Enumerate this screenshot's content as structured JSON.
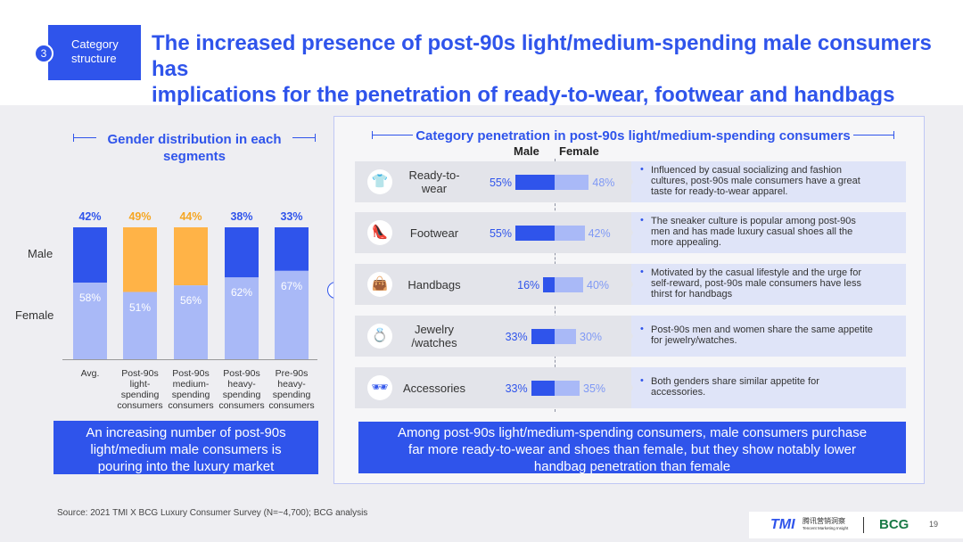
{
  "header": {
    "section_number": "3",
    "section_label_line1": "Category",
    "section_label_line2": "structure",
    "title_line1": "The increased presence of post-90s light/medium-spending male consumers has",
    "title_line2": "implications for the penetration of ready-to-wear, footwear and handbags"
  },
  "left": {
    "title_line1": "Gender distribution in each",
    "title_line2": "segments",
    "legend_male": "Male",
    "legend_female": "Female",
    "conclusion_line1": "An increasing number of post-90s",
    "conclusion_line2": "light/medium male consumers is",
    "conclusion_line3": "pouring into the luxury market"
  },
  "right": {
    "title": "Category penetration in post-90s light/medium-spending consumers",
    "col_male": "Male",
    "col_female": "Female",
    "conclusion_line1": "Among post-90s light/medium-spending consumers, male consumers purchase",
    "conclusion_line2": "far more ready-to-wear and shoes than female, but they show notably lower",
    "conclusion_line3": "handbag penetration than female"
  },
  "chart_data": [
    {
      "type": "bar",
      "stacked": true,
      "title": "Gender distribution in each segments",
      "categories": [
        "Avg.",
        "Post-90s light-spending consumers",
        "Post-90s medium-spending consumers",
        "Post-90s heavy-spending consumers",
        "Pre-90s heavy-spending consumers"
      ],
      "category_labels": [
        [
          "Avg."
        ],
        [
          "Post-90s",
          "light-",
          "spending",
          "consumers"
        ],
        [
          "Post-90s",
          "medium-",
          "spending",
          "consumers"
        ],
        [
          "Post-90s",
          "heavy-",
          "spending",
          "consumers"
        ],
        [
          "Pre-90s",
          "heavy-",
          "spending",
          "consumers"
        ]
      ],
      "series": [
        {
          "name": "Male",
          "values": [
            42,
            49,
            44,
            38,
            33
          ],
          "labels": [
            "42%",
            "49%",
            "44%",
            "38%",
            "33%"
          ]
        },
        {
          "name": "Female",
          "values": [
            58,
            51,
            56,
            62,
            67
          ],
          "labels": [
            "58%",
            "51%",
            "56%",
            "62%",
            "67%"
          ]
        }
      ],
      "highlighted_categories": [
        1,
        2
      ],
      "ylim": [
        0,
        100
      ]
    },
    {
      "type": "bar",
      "orientation": "horizontal-diverging",
      "title": "Category penetration in post-90s light/medium-spending consumers",
      "categories": [
        "Ready-to-wear",
        "Footwear",
        "Handbags",
        "Jewelry/watches",
        "Accessories"
      ],
      "category_labels": [
        [
          "Ready-to-",
          "wear"
        ],
        [
          "Footwear"
        ],
        [
          "Handbags"
        ],
        [
          "Jewelry",
          "/watches"
        ],
        [
          "Accessories"
        ]
      ],
      "series": [
        {
          "name": "Male",
          "values": [
            55,
            55,
            16,
            33,
            33
          ],
          "labels": [
            "55%",
            "55%",
            "16%",
            "33%",
            "33%"
          ]
        },
        {
          "name": "Female",
          "values": [
            48,
            42,
            40,
            30,
            35
          ],
          "labels": [
            "48%",
            "42%",
            "40%",
            "30%",
            "35%"
          ]
        }
      ],
      "icons": [
        "clothing-icon",
        "shoe-icon",
        "handbag-icon",
        "ring-icon",
        "accessories-icon"
      ],
      "descriptions": [
        [
          "Influenced by casual socializing and fashion",
          "cultures, post-90s male consumers have a great",
          "taste for ready-to-wear apparel."
        ],
        [
          "The sneaker culture is popular among post-90s",
          "men and has made luxury casual shoes all the",
          "more appealing."
        ],
        [
          "Motivated by the casual lifestyle and the urge for",
          "self-reward, post-90s male consumers have less",
          "thirst for handbags"
        ],
        [
          "Post-90s men and women share the same appetite",
          "for jewelry/watches."
        ],
        [
          "Both genders share similar appetite for",
          "accessories."
        ]
      ]
    }
  ],
  "footer": {
    "source": "Source: 2021 TMI X BCG Luxury Consumer Survey (N=~4,700); BCG analysis",
    "logo_tmi": "TMI",
    "logo_tmi_cn": "腾讯营销洞察",
    "logo_tmi_en": "Tencent Marketing Insight",
    "logo_bcg": "BCG",
    "page_number": "19"
  },
  "colors": {
    "accent": "#2f54eb",
    "male_bar": "#2f54eb",
    "female_bar": "#a9b9f7",
    "highlight": "#ffb347",
    "background": "#eeeef2"
  }
}
